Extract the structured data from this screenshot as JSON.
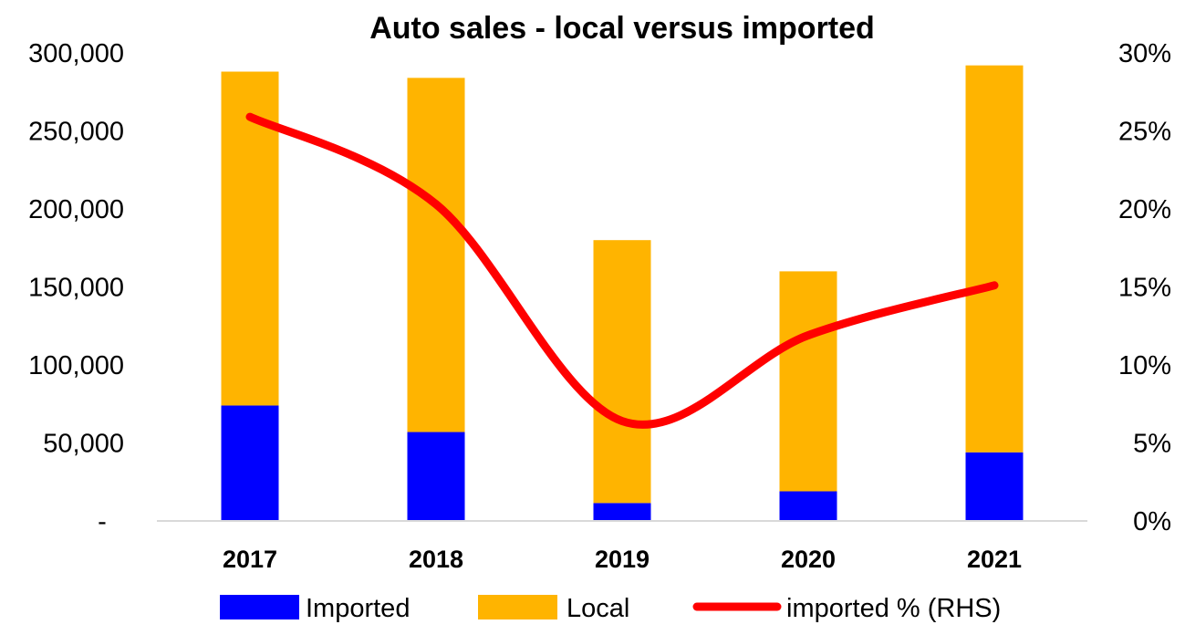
{
  "chart_data": {
    "type": "bar",
    "stacked": true,
    "title": "Auto sales - local versus imported",
    "categories": [
      "2017",
      "2018",
      "2019",
      "2020",
      "2021"
    ],
    "series": [
      {
        "name": "Imported",
        "type": "bar",
        "axis": "left",
        "color": "#0000FF",
        "values": [
          74000,
          57000,
          11500,
          19000,
          44000
        ]
      },
      {
        "name": "Local",
        "type": "bar",
        "axis": "left",
        "color": "#FFB400",
        "values": [
          214000,
          227000,
          168500,
          141000,
          248000
        ]
      },
      {
        "name": "imported % (RHS)",
        "type": "line",
        "axis": "right",
        "color": "#FF0000",
        "values": [
          0.259,
          0.203,
          0.064,
          0.119,
          0.151
        ]
      }
    ],
    "y_left": {
      "min": 0,
      "max": 300000,
      "ticks": [
        0,
        50000,
        100000,
        150000,
        200000,
        250000,
        300000
      ],
      "tick_labels": [
        "-",
        "50,000",
        "100,000",
        "150,000",
        "200,000",
        "250,000",
        "300,000"
      ]
    },
    "y_right": {
      "min": 0,
      "max": 0.3,
      "ticks": [
        0,
        0.05,
        0.1,
        0.15,
        0.2,
        0.25,
        0.3
      ],
      "tick_labels": [
        "0%",
        "5%",
        "10%",
        "15%",
        "20%",
        "25%",
        "30%"
      ]
    },
    "grid": false,
    "legend_position": "bottom"
  }
}
